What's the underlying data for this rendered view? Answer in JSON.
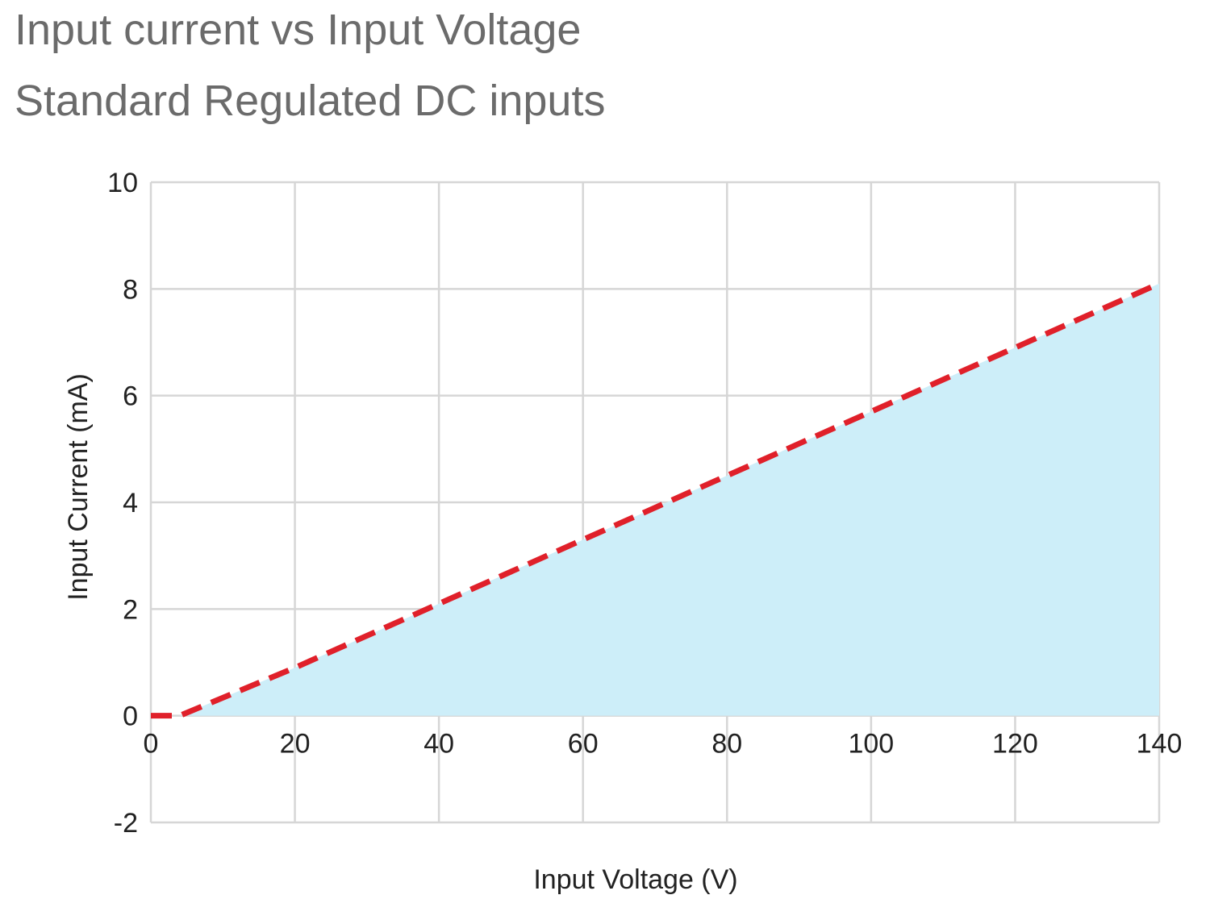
{
  "chart_data": {
    "type": "area",
    "title": "Input current vs Input Voltage",
    "subtitle": "Standard Regulated DC inputs",
    "xlabel": "Input Voltage (V)",
    "ylabel": "Input Current (mA)",
    "xlim": [
      0,
      140
    ],
    "ylim": [
      -2,
      10
    ],
    "xticks": [
      "0",
      "20",
      "40",
      "60",
      "80",
      "100",
      "120",
      "140"
    ],
    "yticks": [
      "-2",
      "0",
      "2",
      "4",
      "6",
      "8",
      "10"
    ],
    "grid": true,
    "series": [
      {
        "style": "dashed-line-with-filled-area",
        "x": [
          0,
          4,
          20,
          40,
          60,
          80,
          100,
          120,
          140
        ],
        "y": [
          0,
          0,
          0.9,
          2.1,
          3.3,
          4.5,
          5.7,
          6.9,
          8.1
        ]
      }
    ],
    "colors": {
      "line": "#e0202a",
      "fill": "#cdeef9",
      "grid": "#d6d6d6",
      "title": "#6b6b6b"
    }
  }
}
